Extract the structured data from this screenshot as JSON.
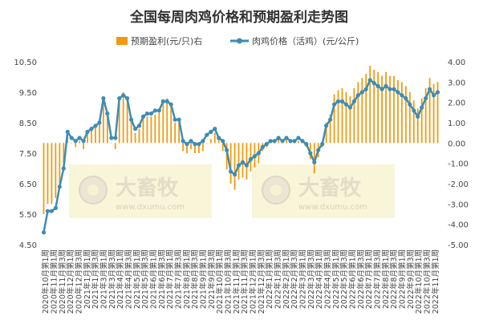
{
  "chart_data": {
    "type": "bar+line",
    "title": "全国每周肉鸡价格和预期盈利走势图",
    "legend": {
      "placement": "top-center",
      "bar_label": "预期盈利(元/只)右",
      "line_label": "肉鸡价格（活鸡）(元/公斤)"
    },
    "watermark": {
      "brand": "大畜牧",
      "url": "www.dxumu.com"
    },
    "left_axis": {
      "min": 4.5,
      "max": 10.5,
      "ticks": [
        "4.50",
        "5.50",
        "6.50",
        "7.50",
        "8.50",
        "9.50",
        "10.50"
      ]
    },
    "right_axis": {
      "min": -5.0,
      "max": 4.0,
      "ticks": [
        "-5.00",
        "-4.00",
        "-3.00",
        "-2.00",
        "-1.00",
        "0.00",
        "1.00",
        "2.00",
        "3.00",
        "4.00"
      ]
    },
    "x_tick_labels": [
      "2020年10月第1周",
      "2020年11月第1周",
      "2020年11月第3周",
      "2020年12月第1周",
      "2020年12月第3周",
      "2021年1月第1周",
      "2021年1月第3周",
      "2021年3月第1周",
      "2021年3月第3周",
      "2021年4月第1周",
      "2021年4月第3周",
      "2021年5月第1周",
      "2021年5月第3周",
      "2021年6月第1周",
      "2021年6月第3周",
      "2021年7月第1周",
      "2021年7月第3周",
      "2021年8月第1周",
      "2021年8月第3周",
      "2021年9月第1周",
      "2021年9月第3周",
      "2021年10月第1周",
      "2021年10月第3周",
      "2021年11月第1周",
      "2021年11月第3周",
      "2021年12月第1周",
      "2021年12月第3周",
      "2022年1月第1周",
      "2022年1月第3周",
      "2022年2月第1周",
      "2022年2月第3周",
      "2022年3月第1周",
      "2022年3月第3周",
      "2022年4月第1周",
      "2022年4月第3周",
      "2022年5月第1周",
      "2022年5月第3周",
      "2022年6月第1周",
      "2022年6月第3周",
      "2022年7月第1周",
      "2022年7月第3周",
      "2022年8月第1周",
      "2022年8月第3周",
      "2022年9月第1周",
      "2022年9月第3周",
      "2022年10月第1周",
      "2022年10月第3周",
      "2022年11月第1周"
    ],
    "series": [
      {
        "name": "肉鸡价格（活鸡）(元/公斤)",
        "type": "line",
        "axis": "left",
        "color": "#3D8DB5",
        "values": [
          4.9,
          5.6,
          5.6,
          5.7,
          6.4,
          7.0,
          8.2,
          8.0,
          7.9,
          8.0,
          7.9,
          8.2,
          8.3,
          8.4,
          8.5,
          9.3,
          8.8,
          8.0,
          8.0,
          9.3,
          9.4,
          9.3,
          8.6,
          8.3,
          8.4,
          8.7,
          8.8,
          8.8,
          8.9,
          8.9,
          9.2,
          9.2,
          9.1,
          8.6,
          8.6,
          7.9,
          7.8,
          7.9,
          7.8,
          7.8,
          7.9,
          8.1,
          8.2,
          8.3,
          8.0,
          7.9,
          7.6,
          6.9,
          6.8,
          7.1,
          7.2,
          7.1,
          7.3,
          7.4,
          7.5,
          7.7,
          7.8,
          7.9,
          7.9,
          8.0,
          7.9,
          8.0,
          7.9,
          7.9,
          8.0,
          7.9,
          7.8,
          7.5,
          7.2,
          7.6,
          7.8,
          8.4,
          8.6,
          9.1,
          9.2,
          9.2,
          9.1,
          9.0,
          9.2,
          9.4,
          9.5,
          9.6,
          9.9,
          9.8,
          9.7,
          9.6,
          9.7,
          9.6,
          9.6,
          9.5,
          9.4,
          9.3,
          9.1,
          8.9,
          8.7,
          9.0,
          9.3,
          9.6,
          9.4,
          9.5
        ]
      },
      {
        "name": "预期盈利(元/只)右",
        "type": "bar",
        "axis": "right",
        "color": "#F29A0E",
        "values": [
          -3.5,
          -3.0,
          -3.0,
          -2.7,
          -2.0,
          -1.3,
          0.6,
          0.0,
          -0.2,
          0.1,
          -0.3,
          0.5,
          0.7,
          0.8,
          0.9,
          2.3,
          1.4,
          0.0,
          -0.3,
          2.3,
          2.5,
          2.2,
          1.3,
          0.5,
          0.7,
          1.4,
          1.3,
          1.3,
          1.4,
          1.5,
          2.1,
          2.2,
          2.0,
          1.0,
          1.0,
          -0.4,
          -0.5,
          -0.3,
          -0.5,
          -0.5,
          -0.4,
          0.0,
          0.2,
          0.5,
          0.2,
          -0.4,
          -1.3,
          -2.0,
          -2.3,
          -1.8,
          -1.7,
          -1.8,
          -1.4,
          -1.2,
          -1.0,
          -0.4,
          -0.2,
          0.0,
          0.0,
          0.2,
          0.1,
          0.2,
          0.0,
          0.0,
          0.1,
          0.0,
          -0.2,
          -0.8,
          -1.5,
          -0.7,
          -0.2,
          1.0,
          1.4,
          2.4,
          2.6,
          2.7,
          2.5,
          2.3,
          2.7,
          3.0,
          3.2,
          3.4,
          3.8,
          3.6,
          3.5,
          3.3,
          3.5,
          3.3,
          3.3,
          3.1,
          3.0,
          2.8,
          2.5,
          2.1,
          1.7,
          2.2,
          2.7,
          3.2,
          2.9,
          3.0
        ]
      }
    ]
  }
}
